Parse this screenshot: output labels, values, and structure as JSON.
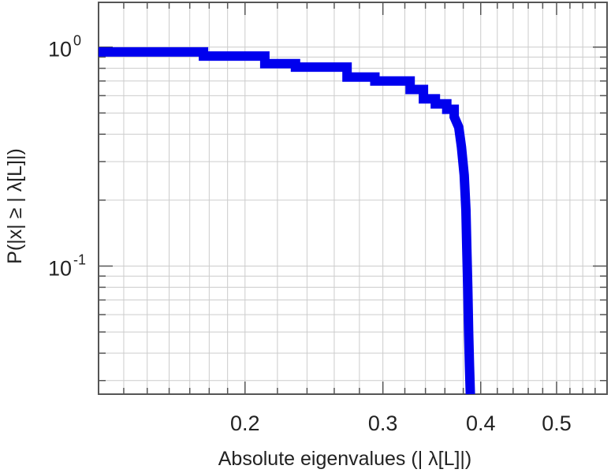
{
  "chart_data": {
    "type": "line",
    "xlabel": "Absolute eigenvalues (|      λ[L]|)",
    "ylabel": "P(|x|  ≥ | λ[L]|)",
    "x_scale": "log",
    "y_scale": "log",
    "xlim": [
      0.13,
      0.58
    ],
    "ylim": [
      0.026,
      1.6
    ],
    "x_ticks": [
      {
        "value": 0.2,
        "label": "0.2"
      },
      {
        "value": 0.3,
        "label": "0.3"
      },
      {
        "value": 0.4,
        "label": "0.4"
      },
      {
        "value": 0.5,
        "label": "0.5"
      }
    ],
    "y_ticks": [
      {
        "value": 1.0,
        "base": "10",
        "exp": "0"
      },
      {
        "value": 0.1,
        "base": "10",
        "exp": "-1"
      }
    ],
    "grid": true,
    "series": [
      {
        "color": "#0000ee",
        "x": [
          0.13,
          0.177,
          0.177,
          0.212,
          0.212,
          0.232,
          0.232,
          0.27,
          0.27,
          0.293,
          0.293,
          0.325,
          0.325,
          0.338,
          0.338,
          0.35,
          0.35,
          0.362,
          0.362,
          0.37,
          0.37,
          0.375,
          0.378,
          0.381,
          0.383,
          0.384,
          0.385,
          0.386,
          0.387,
          0.388
        ],
        "y": [
          0.95,
          0.95,
          0.91,
          0.91,
          0.84,
          0.84,
          0.81,
          0.81,
          0.73,
          0.73,
          0.7,
          0.7,
          0.64,
          0.64,
          0.58,
          0.58,
          0.55,
          0.55,
          0.52,
          0.52,
          0.48,
          0.43,
          0.35,
          0.26,
          0.18,
          0.12,
          0.08,
          0.05,
          0.035,
          0.026
        ]
      }
    ]
  }
}
